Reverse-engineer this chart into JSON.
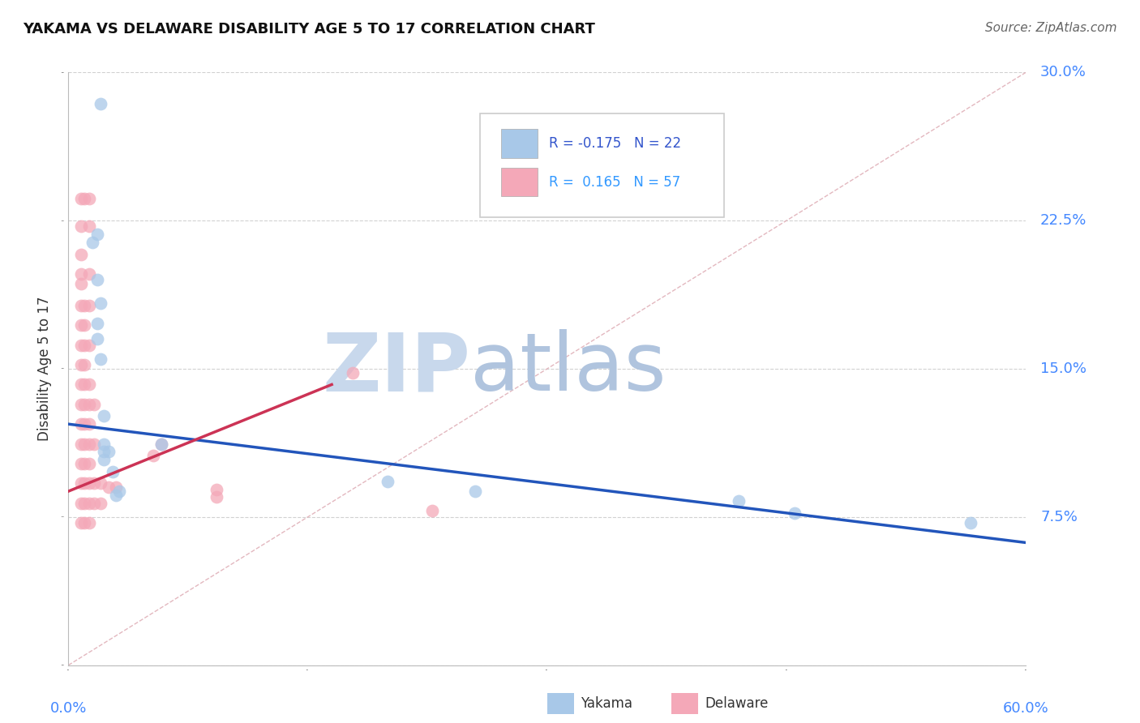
{
  "title": "YAKAMA VS DELAWARE DISABILITY AGE 5 TO 17 CORRELATION CHART",
  "source": "Source: ZipAtlas.com",
  "ylabel": "Disability Age 5 to 17",
  "yakama_R": -0.175,
  "yakama_N": 22,
  "delaware_R": 0.165,
  "delaware_N": 57,
  "xlim": [
    0.0,
    0.6
  ],
  "ylim": [
    0.0,
    0.3
  ],
  "xticks": [
    0.0,
    0.15,
    0.3,
    0.45,
    0.6
  ],
  "yticks": [
    0.0,
    0.075,
    0.15,
    0.225,
    0.3
  ],
  "yakama_color": "#a8c8e8",
  "delaware_color": "#f4a8b8",
  "trend_yakama_color": "#2255bb",
  "trend_delaware_color": "#cc3355",
  "diagonal_color": "#e0b0b8",
  "grid_color": "#cccccc",
  "axis_label_color": "#4488ff",
  "title_color": "#111111",
  "watermark_zip_color": "#c8d8ec",
  "watermark_atlas_color": "#b0c4de",
  "yakama_trend_x": [
    0.0,
    0.6
  ],
  "yakama_trend_y": [
    0.122,
    0.062
  ],
  "delaware_trend_x": [
    0.0,
    0.165
  ],
  "delaware_trend_y": [
    0.088,
    0.142
  ],
  "yakama_points": [
    [
      0.02,
      0.284
    ],
    [
      0.018,
      0.218
    ],
    [
      0.015,
      0.214
    ],
    [
      0.018,
      0.195
    ],
    [
      0.02,
      0.183
    ],
    [
      0.018,
      0.173
    ],
    [
      0.018,
      0.165
    ],
    [
      0.02,
      0.155
    ],
    [
      0.022,
      0.126
    ],
    [
      0.022,
      0.112
    ],
    [
      0.022,
      0.108
    ],
    [
      0.025,
      0.108
    ],
    [
      0.022,
      0.104
    ],
    [
      0.028,
      0.098
    ],
    [
      0.058,
      0.112
    ],
    [
      0.032,
      0.088
    ],
    [
      0.03,
      0.086
    ],
    [
      0.2,
      0.093
    ],
    [
      0.255,
      0.088
    ],
    [
      0.42,
      0.083
    ],
    [
      0.455,
      0.077
    ],
    [
      0.565,
      0.072
    ]
  ],
  "delaware_points": [
    [
      0.008,
      0.236
    ],
    [
      0.01,
      0.236
    ],
    [
      0.013,
      0.236
    ],
    [
      0.008,
      0.222
    ],
    [
      0.013,
      0.222
    ],
    [
      0.008,
      0.208
    ],
    [
      0.008,
      0.198
    ],
    [
      0.013,
      0.198
    ],
    [
      0.008,
      0.193
    ],
    [
      0.008,
      0.182
    ],
    [
      0.01,
      0.182
    ],
    [
      0.013,
      0.182
    ],
    [
      0.008,
      0.172
    ],
    [
      0.01,
      0.172
    ],
    [
      0.008,
      0.162
    ],
    [
      0.01,
      0.162
    ],
    [
      0.013,
      0.162
    ],
    [
      0.008,
      0.152
    ],
    [
      0.01,
      0.152
    ],
    [
      0.008,
      0.142
    ],
    [
      0.01,
      0.142
    ],
    [
      0.013,
      0.142
    ],
    [
      0.008,
      0.132
    ],
    [
      0.01,
      0.132
    ],
    [
      0.013,
      0.132
    ],
    [
      0.016,
      0.132
    ],
    [
      0.008,
      0.122
    ],
    [
      0.01,
      0.122
    ],
    [
      0.013,
      0.122
    ],
    [
      0.008,
      0.112
    ],
    [
      0.01,
      0.112
    ],
    [
      0.013,
      0.112
    ],
    [
      0.016,
      0.112
    ],
    [
      0.008,
      0.102
    ],
    [
      0.01,
      0.102
    ],
    [
      0.013,
      0.102
    ],
    [
      0.008,
      0.092
    ],
    [
      0.01,
      0.092
    ],
    [
      0.013,
      0.092
    ],
    [
      0.016,
      0.092
    ],
    [
      0.02,
      0.092
    ],
    [
      0.008,
      0.082
    ],
    [
      0.01,
      0.082
    ],
    [
      0.013,
      0.082
    ],
    [
      0.016,
      0.082
    ],
    [
      0.02,
      0.082
    ],
    [
      0.008,
      0.072
    ],
    [
      0.01,
      0.072
    ],
    [
      0.013,
      0.072
    ],
    [
      0.025,
      0.09
    ],
    [
      0.03,
      0.09
    ],
    [
      0.058,
      0.112
    ],
    [
      0.053,
      0.106
    ],
    [
      0.093,
      0.089
    ],
    [
      0.093,
      0.085
    ],
    [
      0.178,
      0.148
    ],
    [
      0.228,
      0.078
    ]
  ]
}
